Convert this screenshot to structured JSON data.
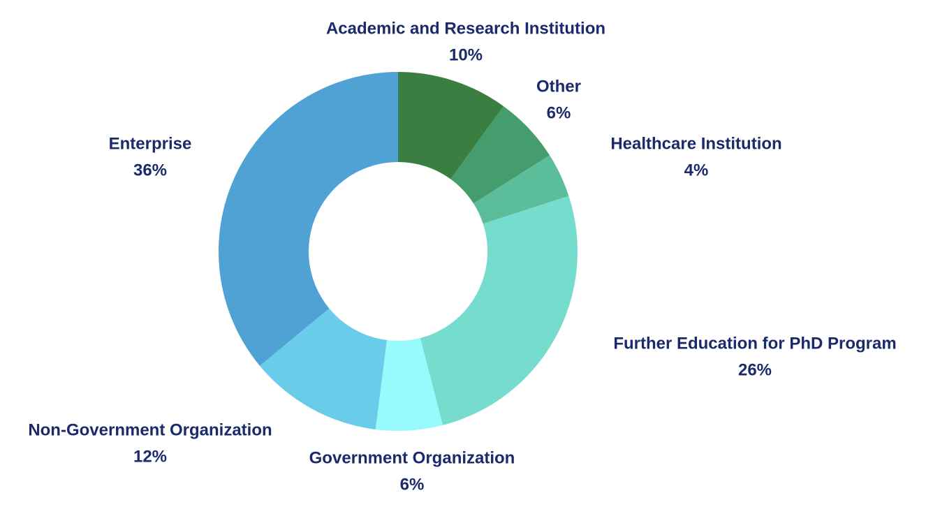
{
  "chart_data": {
    "type": "donut",
    "categories": [
      "Academic and Research Institution",
      "Other",
      "Healthcare Institution",
      "Further Education for PhD Program",
      "Government Organization",
      "Non-Government Organization",
      "Enterprise"
    ],
    "values": [
      10,
      6,
      4,
      26,
      6,
      12,
      36
    ],
    "value_labels": [
      "10%",
      "6%",
      "4%",
      "26%",
      "6%",
      "12%",
      "36%"
    ],
    "colors": [
      "#3a7f41",
      "#459c6c",
      "#5bbd9a",
      "#76ddce",
      "#98fafc",
      "#69cdea",
      "#50a1d4"
    ]
  }
}
